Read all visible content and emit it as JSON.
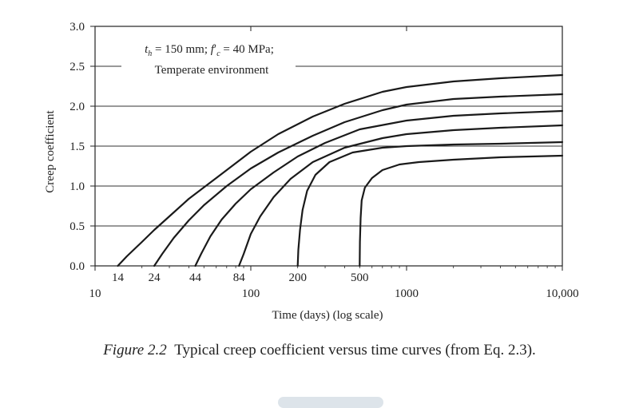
{
  "chart_data": {
    "type": "line",
    "xscale": "log",
    "xlim": [
      10,
      10000
    ],
    "ylim": [
      0,
      3
    ],
    "ylabel": "Creep coefficient",
    "xlabel": "Time (days) (log scale)",
    "y_ticks": [
      "0.0",
      "0.5",
      "1.0",
      "1.5",
      "2.0",
      "2.5",
      "3.0"
    ],
    "x_ticks": [
      {
        "value": 10,
        "label": "10"
      },
      {
        "value": 100,
        "label": "100"
      },
      {
        "value": 1000,
        "label": "1000"
      },
      {
        "value": 10000,
        "label": "10,000"
      }
    ],
    "x_markers": [
      {
        "value": 14,
        "label": "14"
      },
      {
        "value": 24,
        "label": "24"
      },
      {
        "value": 44,
        "label": "44"
      },
      {
        "value": 84,
        "label": "84"
      },
      {
        "value": 200,
        "label": "200"
      },
      {
        "value": 500,
        "label": "500"
      }
    ],
    "grid": "horizontal",
    "annotation": {
      "line1_parts": [
        "t",
        "h",
        " = 150 mm; ",
        "f",
        "′",
        "c",
        " = 40 MPa;"
      ],
      "line2": "Temperate environment"
    },
    "series": [
      {
        "points": [
          [
            14,
            0
          ],
          [
            16,
            0.12
          ],
          [
            20,
            0.3
          ],
          [
            24,
            0.45
          ],
          [
            30,
            0.62
          ],
          [
            40,
            0.84
          ],
          [
            60,
            1.1
          ],
          [
            100,
            1.43
          ],
          [
            150,
            1.65
          ],
          [
            250,
            1.87
          ],
          [
            400,
            2.03
          ],
          [
            700,
            2.18
          ],
          [
            1000,
            2.24
          ],
          [
            2000,
            2.31
          ],
          [
            4000,
            2.35
          ],
          [
            10000,
            2.39
          ]
        ]
      },
      {
        "points": [
          [
            24,
            0
          ],
          [
            27,
            0.15
          ],
          [
            32,
            0.35
          ],
          [
            40,
            0.57
          ],
          [
            50,
            0.76
          ],
          [
            70,
            1.0
          ],
          [
            100,
            1.22
          ],
          [
            150,
            1.42
          ],
          [
            250,
            1.63
          ],
          [
            400,
            1.8
          ],
          [
            700,
            1.95
          ],
          [
            1000,
            2.02
          ],
          [
            2000,
            2.09
          ],
          [
            4000,
            2.12
          ],
          [
            10000,
            2.15
          ]
        ]
      },
      {
        "points": [
          [
            44,
            0
          ],
          [
            48,
            0.15
          ],
          [
            55,
            0.37
          ],
          [
            65,
            0.58
          ],
          [
            80,
            0.78
          ],
          [
            100,
            0.96
          ],
          [
            140,
            1.17
          ],
          [
            200,
            1.37
          ],
          [
            300,
            1.54
          ],
          [
            500,
            1.71
          ],
          [
            1000,
            1.82
          ],
          [
            2000,
            1.88
          ],
          [
            4000,
            1.91
          ],
          [
            10000,
            1.94
          ]
        ]
      },
      {
        "points": [
          [
            84,
            0
          ],
          [
            90,
            0.15
          ],
          [
            100,
            0.4
          ],
          [
            115,
            0.62
          ],
          [
            140,
            0.86
          ],
          [
            180,
            1.09
          ],
          [
            250,
            1.3
          ],
          [
            400,
            1.48
          ],
          [
            700,
            1.6
          ],
          [
            1000,
            1.65
          ],
          [
            2000,
            1.7
          ],
          [
            4000,
            1.73
          ],
          [
            10000,
            1.76
          ]
        ]
      },
      {
        "points": [
          [
            200,
            0
          ],
          [
            202,
            0.2
          ],
          [
            207,
            0.45
          ],
          [
            215,
            0.7
          ],
          [
            230,
            0.94
          ],
          [
            260,
            1.14
          ],
          [
            320,
            1.3
          ],
          [
            450,
            1.42
          ],
          [
            700,
            1.48
          ],
          [
            1000,
            1.5
          ],
          [
            2000,
            1.52
          ],
          [
            4000,
            1.53
          ],
          [
            10000,
            1.55
          ]
        ]
      },
      {
        "points": [
          [
            500,
            0
          ],
          [
            502,
            0.3
          ],
          [
            507,
            0.6
          ],
          [
            515,
            0.82
          ],
          [
            540,
            0.98
          ],
          [
            600,
            1.1
          ],
          [
            700,
            1.2
          ],
          [
            900,
            1.27
          ],
          [
            1200,
            1.3
          ],
          [
            2000,
            1.33
          ],
          [
            4000,
            1.36
          ],
          [
            10000,
            1.38
          ]
        ]
      }
    ]
  },
  "caption": {
    "figure_label": "Figure 2.2",
    "text": "Typical creep coefficient versus time curves (from Eq. 2.3)."
  }
}
